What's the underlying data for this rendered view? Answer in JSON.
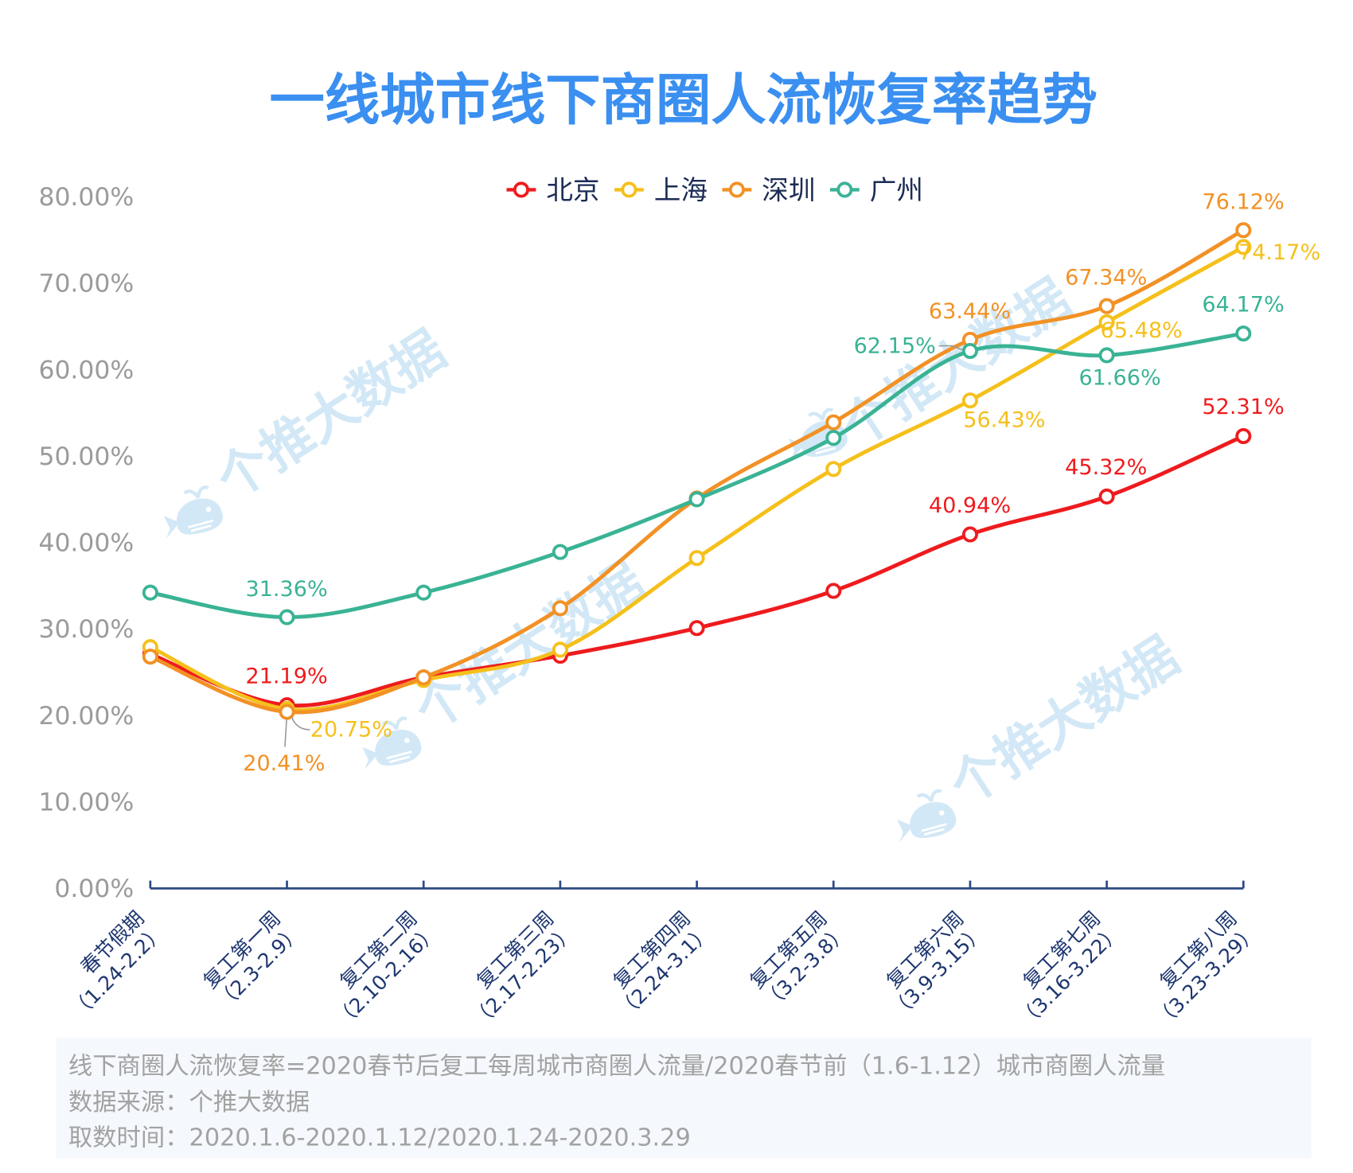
{
  "watermark": "个推大数据",
  "footer": {
    "formula": "线下商圈人流恢复率=2020春节后复工每周城市商圈人流量/2020春节前（1.6-1.12）城市商圈人流量",
    "source": "数据来源：个推大数据",
    "period": "取数时间：2020.1.6-2020.1.12/2020.1.24-2020.3.29"
  },
  "colors": {
    "title": "#3a8ff0",
    "axis": "#2d4a85",
    "x_label_text": "#1d3670",
    "legend_text": "#1d2c55",
    "tick_text": "#9b9b9b",
    "footer_text": "#a2a2a2",
    "footer_bg": "#f5f8fc",
    "watermark": "#d3e8f6",
    "leader_line": "#9a9a9a",
    "marker_fill": "#ffffff"
  },
  "chart_data": {
    "type": "line",
    "title": "一线城市线下商圈人流恢复率趋势",
    "xlabel": "",
    "ylabel": "",
    "ylim": [
      0,
      80
    ],
    "yticks": [
      0,
      10,
      20,
      30,
      40,
      50,
      60,
      70,
      80
    ],
    "ytick_labels": [
      "0.00%",
      "10.00%",
      "20.00%",
      "30.00%",
      "40.00%",
      "50.00%",
      "60.00%",
      "70.00%",
      "80.00%"
    ],
    "legend_position": "top-center",
    "categories": [
      {
        "name": "春节假期",
        "range": "（1.24-2.2）"
      },
      {
        "name": "复工第一周",
        "range": "（2.3-2.9）"
      },
      {
        "name": "复工第二周",
        "range": "（2.10-2.16）"
      },
      {
        "name": "复工第三周",
        "range": "（2.17-2.23）"
      },
      {
        "name": "复工第四周",
        "range": "（2.24-3.1）"
      },
      {
        "name": "复工第五周",
        "range": "（3.2-3.8）"
      },
      {
        "name": "复工第六周",
        "range": "（3.9-3.15）"
      },
      {
        "name": "复工第七周",
        "range": "（3.16-3.22）"
      },
      {
        "name": "复工第八周",
        "range": "（3.23-3.29）"
      }
    ],
    "series": [
      {
        "name": "北京",
        "color": "#ee1b1e",
        "values": [
          27.1,
          21.19,
          24.4,
          26.9,
          30.1,
          34.4,
          40.94,
          45.32,
          52.31
        ],
        "labels": [
          null,
          "21.19%",
          null,
          null,
          null,
          null,
          "40.94%",
          "45.32%",
          "52.31%"
        ]
      },
      {
        "name": "上海",
        "color": "#f5c01b",
        "values": [
          27.9,
          20.75,
          24.1,
          27.6,
          38.2,
          48.5,
          56.43,
          65.48,
          74.17
        ],
        "labels": [
          null,
          "20.75%",
          null,
          null,
          null,
          null,
          "56.43%",
          "65.48%",
          "74.17%"
        ]
      },
      {
        "name": "深圳",
        "color": "#f29125",
        "values": [
          26.8,
          20.41,
          24.4,
          32.4,
          45.1,
          53.9,
          63.44,
          67.34,
          76.12
        ],
        "labels": [
          null,
          "20.41%",
          null,
          null,
          null,
          null,
          "63.44%",
          "67.34%",
          "76.12%"
        ]
      },
      {
        "name": "广州",
        "color": "#3ab395",
        "values": [
          34.2,
          31.36,
          34.2,
          38.9,
          45.0,
          52.1,
          62.15,
          61.66,
          64.17
        ],
        "labels": [
          null,
          "31.36%",
          null,
          null,
          null,
          null,
          "62.15%",
          "61.66%",
          "64.17%"
        ]
      }
    ]
  }
}
